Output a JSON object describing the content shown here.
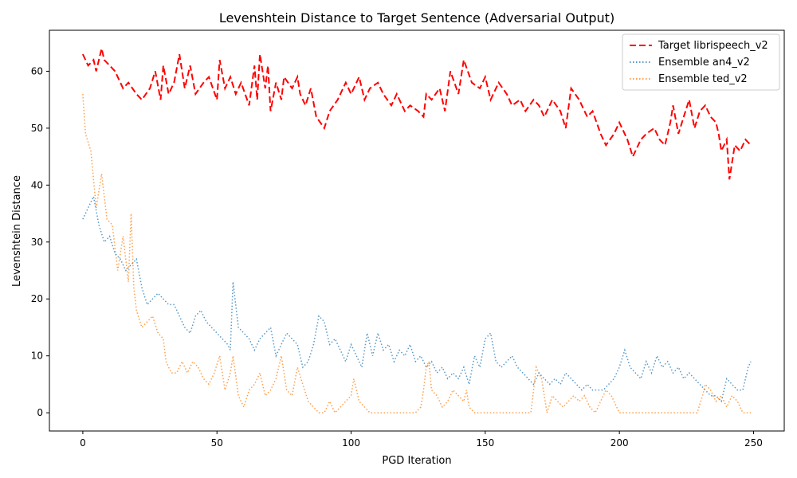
{
  "chart_data": {
    "type": "line",
    "title": "Levenshtein Distance to Target Sentence (Adversarial Output)",
    "xlabel": "PGD Iteration",
    "ylabel": "Levenshtein Distance",
    "xlim": [
      -12.45,
      261.45
    ],
    "ylim": [
      -3.2,
      67.2
    ],
    "xticks": [
      0,
      50,
      100,
      150,
      200,
      250
    ],
    "yticks": [
      0,
      10,
      20,
      30,
      40,
      50,
      60
    ],
    "grid": false,
    "legend": "top-right",
    "series": [
      {
        "name": "Target librispeech_v2",
        "color": "#ff0000",
        "style": "dashed",
        "x": [
          0,
          2,
          4,
          5,
          7,
          8,
          10,
          12,
          13,
          15,
          17,
          20,
          22,
          25,
          27,
          29,
          30,
          32,
          34,
          36,
          38,
          40,
          42,
          45,
          47,
          50,
          51,
          53,
          55,
          57,
          59,
          62,
          64,
          65,
          66,
          68,
          69,
          70,
          72,
          74,
          75,
          78,
          80,
          81,
          83,
          85,
          87,
          90,
          92,
          95,
          98,
          100,
          103,
          105,
          107,
          110,
          112,
          115,
          117,
          120,
          122,
          125,
          127,
          128,
          130,
          133,
          135,
          137,
          140,
          142,
          145,
          148,
          150,
          152,
          155,
          158,
          160,
          163,
          165,
          168,
          170,
          172,
          175,
          178,
          180,
          182,
          185,
          188,
          190,
          193,
          195,
          198,
          200,
          203,
          205,
          208,
          210,
          213,
          215,
          217,
          219,
          220,
          222,
          224,
          226,
          228,
          230,
          232,
          234,
          236,
          237,
          238,
          240,
          241,
          243,
          245,
          247,
          249
        ],
        "y": [
          63,
          61,
          62,
          60,
          64,
          62,
          61,
          60,
          59,
          57,
          58,
          56,
          55,
          57,
          60,
          55,
          61,
          56,
          58,
          63,
          57,
          61,
          56,
          58,
          59,
          55,
          62,
          57,
          59,
          56,
          58,
          54,
          61,
          55,
          63,
          57,
          61,
          53,
          58,
          55,
          59,
          57,
          59,
          56,
          54,
          57,
          52,
          50,
          53,
          55,
          58,
          56,
          59,
          55,
          57,
          58,
          56,
          54,
          56,
          53,
          54,
          53,
          52,
          56,
          55,
          57,
          53,
          60,
          56,
          62,
          58,
          57,
          59,
          55,
          58,
          56,
          54,
          55,
          53,
          55,
          54,
          52,
          55,
          53,
          50,
          57,
          55,
          52,
          53,
          49,
          47,
          49,
          51,
          48,
          45,
          48,
          49,
          50,
          48,
          47,
          51,
          54,
          49,
          52,
          55,
          50,
          53,
          54,
          52,
          51,
          49,
          46,
          48,
          41,
          47,
          46,
          48,
          47
        ]
      },
      {
        "name": "Ensemble an4_v2",
        "color": "#1f77b4",
        "style": "dotted",
        "x": [
          0,
          2,
          4,
          6,
          8,
          10,
          12,
          14,
          16,
          18,
          20,
          22,
          24,
          26,
          28,
          30,
          32,
          34,
          36,
          38,
          40,
          42,
          44,
          46,
          48,
          50,
          52,
          54,
          55,
          56,
          58,
          60,
          62,
          64,
          66,
          68,
          70,
          72,
          74,
          76,
          78,
          80,
          82,
          84,
          86,
          88,
          90,
          92,
          94,
          96,
          98,
          100,
          102,
          104,
          106,
          108,
          110,
          112,
          114,
          116,
          118,
          120,
          122,
          124,
          126,
          128,
          130,
          132,
          134,
          136,
          138,
          140,
          142,
          144,
          146,
          148,
          150,
          152,
          154,
          156,
          158,
          160,
          162,
          164,
          166,
          168,
          170,
          172,
          174,
          176,
          178,
          180,
          182,
          184,
          186,
          188,
          190,
          192,
          194,
          196,
          198,
          200,
          202,
          204,
          206,
          208,
          210,
          212,
          214,
          216,
          218,
          220,
          222,
          224,
          226,
          228,
          230,
          232,
          234,
          236,
          238,
          240,
          242,
          244,
          246,
          248,
          249
        ],
        "y": [
          34,
          36,
          38,
          33,
          30,
          31,
          28,
          27,
          25,
          26,
          27,
          22,
          19,
          20,
          21,
          20,
          19,
          19,
          17,
          15,
          14,
          17,
          18,
          16,
          15,
          14,
          13,
          12,
          11,
          23,
          15,
          14,
          13,
          11,
          13,
          14,
          15,
          10,
          12,
          14,
          13,
          12,
          8,
          9,
          12,
          17,
          16,
          12,
          13,
          11,
          9,
          12,
          10,
          8,
          14,
          10,
          14,
          11,
          12,
          9,
          11,
          10,
          12,
          9,
          10,
          8,
          9,
          7,
          8,
          6,
          7,
          6,
          8,
          5,
          10,
          8,
          13,
          14,
          9,
          8,
          9,
          10,
          8,
          7,
          6,
          5,
          7,
          6,
          5,
          6,
          5,
          7,
          6,
          5,
          4,
          5,
          4,
          4,
          4,
          5,
          6,
          8,
          11,
          8,
          7,
          6,
          9,
          7,
          10,
          8,
          9,
          7,
          8,
          6,
          7,
          6,
          5,
          4,
          3,
          3,
          2,
          6,
          5,
          4,
          4,
          8,
          9
        ]
      },
      {
        "name": "Ensemble ted_v2",
        "color": "#ff7f0e",
        "style": "dotted",
        "x": [
          0,
          1,
          3,
          5,
          7,
          9,
          11,
          13,
          15,
          17,
          18,
          19,
          20,
          22,
          24,
          26,
          28,
          30,
          31,
          33,
          35,
          37,
          39,
          41,
          43,
          45,
          47,
          49,
          51,
          53,
          55,
          56,
          58,
          60,
          62,
          64,
          66,
          68,
          70,
          72,
          74,
          76,
          78,
          80,
          82,
          84,
          86,
          88,
          90,
          92,
          94,
          96,
          98,
          100,
          101,
          103,
          105,
          107,
          110,
          115,
          120,
          124,
          126,
          127,
          128,
          129,
          130,
          132,
          134,
          136,
          138,
          140,
          142,
          143,
          144,
          146,
          150,
          155,
          160,
          163,
          165,
          167,
          169,
          171,
          173,
          175,
          177,
          179,
          181,
          183,
          185,
          187,
          189,
          191,
          193,
          195,
          197,
          200,
          205,
          210,
          215,
          220,
          225,
          229,
          231,
          232,
          234,
          236,
          238,
          240,
          242,
          244,
          246,
          248,
          249
        ],
        "y": [
          56,
          49,
          46,
          36,
          42,
          34,
          33,
          25,
          31,
          23,
          35,
          22,
          18,
          15,
          16,
          17,
          14,
          13,
          9,
          7,
          7,
          9,
          7,
          9,
          8,
          6,
          5,
          7,
          10,
          4,
          7,
          10,
          3,
          1,
          4,
          5,
          7,
          3,
          4,
          6,
          10,
          4,
          3,
          8,
          5,
          2,
          1,
          0,
          0,
          2,
          0,
          1,
          2,
          3,
          6,
          2,
          1,
          0,
          0,
          0,
          0,
          0,
          1,
          4,
          8,
          9,
          4,
          3,
          1,
          2,
          4,
          3,
          2,
          4,
          1,
          0,
          0,
          0,
          0,
          0,
          0,
          0,
          8,
          6,
          0,
          3,
          2,
          1,
          2,
          3,
          2,
          3,
          1,
          0,
          2,
          4,
          3,
          0,
          0,
          0,
          0,
          0,
          0,
          0,
          3,
          5,
          4,
          2,
          3,
          1,
          3,
          2,
          0,
          0,
          0
        ]
      }
    ]
  }
}
